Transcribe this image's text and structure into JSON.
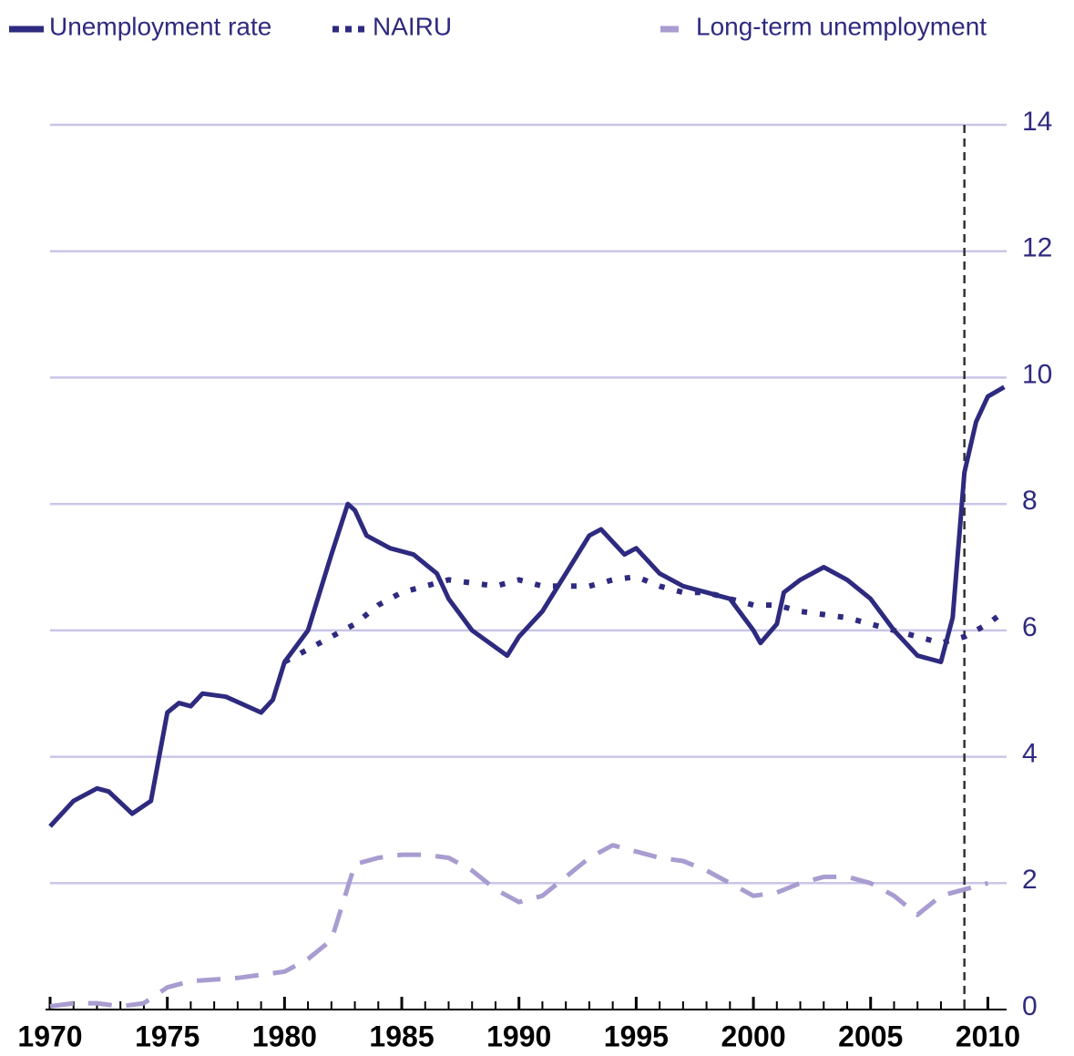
{
  "chart_data": {
    "type": "line",
    "xlim": [
      1970,
      2010.8
    ],
    "ylim": [
      0,
      14
    ],
    "xticks": [
      1970,
      1975,
      1980,
      1985,
      1990,
      1995,
      2000,
      2005,
      2010
    ],
    "xminorticks": [
      1970,
      1971,
      1972,
      1973,
      1974,
      1975,
      1976,
      1977,
      1978,
      1979,
      1980,
      1981,
      1982,
      1983,
      1984,
      1985,
      1986,
      1987,
      1988,
      1989,
      1990,
      1991,
      1992,
      1993,
      1994,
      1995,
      1996,
      1997,
      1998,
      1999,
      2000,
      2001,
      2002,
      2003,
      2004,
      2005,
      2006,
      2007,
      2008,
      2009,
      2010
    ],
    "yticks": [
      0,
      2,
      4,
      6,
      8,
      10,
      12,
      14
    ],
    "grid": true,
    "vline": 2009,
    "series": [
      {
        "name": "Unemployment rate",
        "color": "#2e2a7f",
        "style": "solid",
        "x": [
          1970,
          1971,
          1972,
          1972.5,
          1973.5,
          1974.3,
          1975,
          1975.5,
          1976,
          1976.5,
          1977.5,
          1979,
          1979.5,
          1980,
          1981,
          1982,
          1982.7,
          1983,
          1983.5,
          1984.5,
          1985.5,
          1986.5,
          1987,
          1988,
          1989.5,
          1990,
          1991,
          1992,
          1993,
          1993.5,
          1994.5,
          1995,
          1996,
          1997,
          1998,
          1999,
          2000,
          2000.3,
          2001,
          2001.3,
          2002,
          2003,
          2004,
          2005,
          2006,
          2007,
          2008,
          2008.5,
          2009,
          2009.5,
          2010,
          2010.7
        ],
        "values": [
          2.9,
          3.3,
          3.5,
          3.45,
          3.1,
          3.3,
          4.7,
          4.85,
          4.8,
          5.0,
          4.95,
          4.7,
          4.9,
          5.5,
          6.0,
          7.2,
          8.0,
          7.9,
          7.5,
          7.3,
          7.2,
          6.9,
          6.5,
          6.0,
          5.6,
          5.9,
          6.3,
          6.9,
          7.5,
          7.6,
          7.2,
          7.3,
          6.9,
          6.7,
          6.6,
          6.5,
          6.0,
          5.8,
          6.1,
          6.6,
          6.8,
          7.0,
          6.8,
          6.5,
          6.0,
          5.6,
          5.5,
          6.2,
          8.5,
          9.3,
          9.7,
          9.85
        ]
      },
      {
        "name": "NAIRU",
        "color": "#2e2a7f",
        "style": "dotted",
        "x": [
          1980,
          1981,
          1982,
          1983,
          1984,
          1985,
          1986,
          1987,
          1988,
          1989,
          1990,
          1991,
          1992,
          1993,
          1994,
          1995,
          1996,
          1997,
          1998,
          1999,
          2000,
          2001,
          2002,
          2003,
          2004,
          2005,
          2006,
          2007,
          2008,
          2009,
          2010,
          2010.7
        ],
        "values": [
          5.5,
          5.7,
          5.9,
          6.1,
          6.4,
          6.6,
          6.7,
          6.8,
          6.75,
          6.7,
          6.8,
          6.7,
          6.7,
          6.7,
          6.8,
          6.85,
          6.7,
          6.6,
          6.6,
          6.5,
          6.4,
          6.4,
          6.3,
          6.25,
          6.2,
          6.1,
          6.0,
          5.9,
          5.8,
          5.9,
          6.1,
          6.3
        ]
      },
      {
        "name": "Long-term unemployment",
        "color": "#a89cd0",
        "style": "dashed",
        "x": [
          1970,
          1971,
          1972,
          1973,
          1974,
          1975,
          1976,
          1978,
          1980,
          1981,
          1982,
          1983,
          1984,
          1985,
          1986,
          1987,
          1988,
          1989,
          1990,
          1991,
          1992,
          1993,
          1994,
          1995,
          1996,
          1997,
          1998,
          1999,
          2000,
          2001,
          2002,
          2003,
          2004,
          2005,
          2006,
          2007,
          2008,
          2009,
          2010
        ],
        "values": [
          0.05,
          0.1,
          0.1,
          0.05,
          0.1,
          0.35,
          0.45,
          0.5,
          0.6,
          0.8,
          1.1,
          2.3,
          2.4,
          2.45,
          2.45,
          2.4,
          2.2,
          1.9,
          1.7,
          1.8,
          2.1,
          2.4,
          2.6,
          2.5,
          2.4,
          2.35,
          2.2,
          2.0,
          1.8,
          1.85,
          2.0,
          2.1,
          2.1,
          2.0,
          1.8,
          1.5,
          1.8,
          1.9,
          2.0
        ]
      }
    ]
  }
}
